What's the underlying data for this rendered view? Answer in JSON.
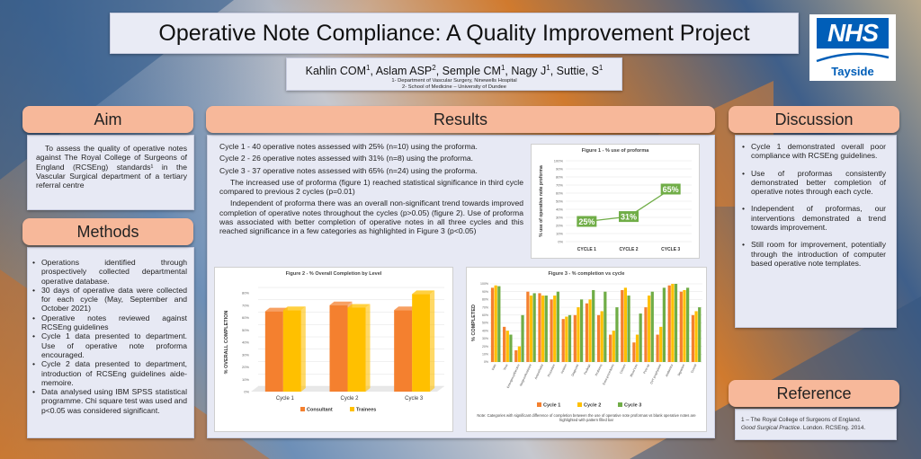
{
  "title": "Operative Note Compliance: A Quality Improvement Project",
  "authors": [
    "Kahlin COM",
    "Aslam ASP",
    "Semple CM",
    "Nagy J",
    "Suttie, S"
  ],
  "author_sups": [
    "1",
    "2",
    "1",
    "1",
    "1"
  ],
  "affiliations": [
    "1- Department of Vascular Surgery, Ninewells Hospital",
    "2- School of Medicine – University of Dundee"
  ],
  "logo": {
    "brand": "NHS",
    "region": "Tayside",
    "color": "#005eb8"
  },
  "aim": {
    "heading": "Aim",
    "text": "To assess the quality of operative notes against The Royal College of Surgeons of England (RCSEng) standards¹ in the Vascular Surgical department of a tertiary referral centre"
  },
  "methods": {
    "heading": "Methods",
    "items": [
      "Operations identified through prospectively collected departmental operative database.",
      "30 days of operative data were collected for each cycle (May, September and October 2021)",
      "Operative notes reviewed against RCSEng guidelines",
      "Cycle 1 data presented to department. Use of operative note proforma encouraged.",
      "Cycle 2 data presented to department, introduction of RCSEng guidelines aide-memoire.",
      "Data analysed using IBM SPSS statistical programme. Chi square test was used and p<0.05 was considered significant."
    ]
  },
  "results": {
    "heading": "Results",
    "cycles": [
      "Cycle 1 - 40 operative notes assessed with 25% (n=10) using the proforma.",
      "Cycle 2 - 26 operative notes assessed with 31% (n=8) using the proforma.",
      "Cycle 3 - 37 operative notes assessed with 65% (n=24) using the proforma."
    ],
    "para1": "The increased use of proforma (figure 1) reached statistical significance in third cycle compared to previous 2 cycles (p=0.01)",
    "para2": "Independent of proforma there was an overall non-significant trend towards improved completion of operative notes throughout the cycles (p>0.05) (figure 2). Use of proforma was associated with better completion of operative notes in all three cycles and this reached significance in a few categories as highlighted in Figure 3 (p<0.05)"
  },
  "discussion": {
    "heading": "Discussion",
    "items": [
      "Cycle 1 demonstrated overall poor compliance with RCSEng guidelines.",
      "Use of proformas consistently demonstrated better completion of operative notes through each cycle.",
      "Independent of proformas, our interventions demonstrated a trend towards improvement.",
      "Still room for improvement, potentially through the introduction of computer based operative note templates."
    ]
  },
  "reference": {
    "heading": "Reference",
    "line1": "1 – The Royal College of Surgeons of England.",
    "line2_italic": "Good Surgical Practice",
    "line2_rest": ". London. RCSEng. 2014."
  },
  "chart_data": [
    {
      "type": "line",
      "title": "Figure 1 - % use of proforma",
      "ylabel": "% use of operative note proforma",
      "categories": [
        "CYCLE 1",
        "CYCLE 2",
        "CYCLE 3"
      ],
      "values": [
        25,
        31,
        65
      ],
      "data_labels": [
        "25%",
        "31%",
        "65%"
      ],
      "ylim": [
        0,
        100
      ],
      "yticks": [
        "0%",
        "10%",
        "20%",
        "30%",
        "40%",
        "50%",
        "60%",
        "70%",
        "80%",
        "90%",
        "100%"
      ],
      "color": "#70ad47"
    },
    {
      "type": "bar",
      "title": "Figure 2 - % Overall Completion by Level",
      "ylabel": "% OVERALL COMPLETION",
      "categories": [
        "Cycle 1",
        "Cycle 2",
        "Cycle 3"
      ],
      "ylim": [
        0,
        80
      ],
      "yticks": [
        "0%",
        "10%",
        "20%",
        "30%",
        "40%",
        "50%",
        "60%",
        "70%",
        "80%"
      ],
      "series": [
        {
          "name": "Consultant",
          "values": [
            65,
            70,
            66
          ],
          "color": "#f4802f"
        },
        {
          "name": "Trainees",
          "values": [
            66,
            68,
            79
          ],
          "color": "#ffc000"
        }
      ]
    },
    {
      "type": "bar",
      "title": "Figure 3 - % completion vs cycle",
      "ylabel": "% COMPLETED",
      "ylim": [
        0,
        100
      ],
      "yticks": [
        "0%",
        "10%",
        "20%",
        "30%",
        "40%",
        "50%",
        "60%",
        "70%",
        "80%",
        "90%",
        "100%"
      ],
      "categories": [
        "Date",
        "Time",
        "Emergency/Elective",
        "Surgeon/Assistant",
        "Anaesthetist",
        "Procedure",
        "Incision",
        "Diagnosis",
        "Findings",
        "Problems",
        "Extra procedures",
        "Closure",
        "Blood loss",
        "Post-op",
        "DVT prophylaxis",
        "Antibiotics",
        "Signature",
        "Overall"
      ],
      "series": [
        {
          "name": "Cycle 1",
          "values": [
            95,
            45,
            15,
            90,
            88,
            80,
            55,
            60,
            75,
            60,
            35,
            92,
            25,
            70,
            35,
            98,
            90,
            60
          ],
          "color": "#f4802f"
        },
        {
          "name": "Cycle 2",
          "values": [
            98,
            40,
            20,
            85,
            85,
            85,
            58,
            70,
            80,
            65,
            40,
            95,
            35,
            85,
            45,
            100,
            92,
            65
          ],
          "color": "#ffc000"
        },
        {
          "name": "Cycle 3",
          "values": [
            97,
            35,
            60,
            88,
            85,
            90,
            60,
            80,
            92,
            90,
            70,
            85,
            62,
            90,
            95,
            100,
            95,
            70
          ],
          "color": "#70ad47"
        }
      ],
      "note": "Note: Categories with significant difference of completion between the use of operative note proformas vs blank operative notes are highlighted with pattern filled bar"
    }
  ]
}
